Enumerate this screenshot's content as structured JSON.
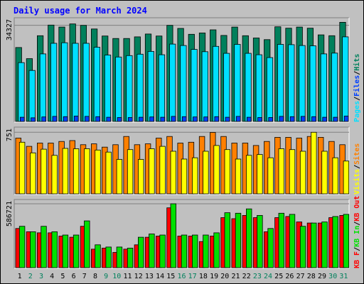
{
  "chart_data": {
    "type": "bar",
    "title": "Daily usage for March 2024",
    "categories": [
      "1",
      "2",
      "3",
      "4",
      "5",
      "6",
      "7",
      "8",
      "9",
      "10",
      "11",
      "12",
      "13",
      "14",
      "15",
      "16",
      "17",
      "18",
      "19",
      "20",
      "21",
      "22",
      "23",
      "24",
      "25",
      "26",
      "27",
      "28",
      "29",
      "30",
      "31"
    ],
    "weekend_days": [
      2,
      3,
      9,
      10,
      16,
      17,
      23,
      24,
      30,
      31
    ],
    "colors": {
      "title": "#0000ff",
      "hits": "#00805c",
      "files": "#00e0ff",
      "pages": "#0040ff",
      "visits": "#ffff00",
      "sites": "#ff8000",
      "kb_in": "#00e000",
      "kb_out": "#ff0000",
      "weekday_label": "#000000",
      "weekend_label": "#00805c",
      "background": "#c0c0c0"
    },
    "panels": [
      {
        "name": "requests",
        "axis_max_label": "34327",
        "ylim": [
          0,
          36000
        ],
        "legend": [
          {
            "text": "Pages",
            "color": "#00e0ff"
          },
          {
            "text": "/",
            "color": "#000000"
          },
          {
            "text": "Files",
            "color": "#0040ff"
          },
          {
            "text": "/",
            "color": "#000000"
          },
          {
            "text": "Hits",
            "color": "#00805c"
          }
        ],
        "series": [
          {
            "name": "Hits",
            "color": "#00805c",
            "values": [
              26400,
              22400,
              30600,
              34400,
              33700,
              34800,
              34300,
              33000,
              30500,
              29600,
              29600,
              30200,
              31200,
              30500,
              34300,
              33200,
              31100,
              31600,
              32700,
              30700,
              33700,
              30600,
              29800,
              29200,
              33800,
              33300,
              33700,
              33300,
              30900,
              30600,
              35400
            ]
          },
          {
            "name": "Files",
            "color": "#00e0ff",
            "values": [
              21000,
              18200,
              24100,
              27900,
              28100,
              27900,
              27900,
              26500,
              23700,
              23000,
              23500,
              24000,
              25000,
              23800,
              27600,
              27100,
              25700,
              24900,
              26800,
              24300,
              27500,
              24300,
              23800,
              22800,
              27500,
              27400,
              27100,
              27000,
              24100,
              24400,
              30200
            ]
          },
          {
            "name": "Pages",
            "color": "#0040ff",
            "values": [
              1500,
              1300,
              1600,
              1800,
              1700,
              1900,
              1800,
              1700,
              1500,
              1400,
              1400,
              1500,
              1600,
              1500,
              1800,
              1700,
              1600,
              1600,
              1700,
              1500,
              1800,
              1500,
              1400,
              1400,
              1800,
              1700,
              1800,
              1700,
              1500,
              1500,
              1900
            ]
          }
        ]
      },
      {
        "name": "visitors",
        "axis_max_label": "751",
        "ylim": [
          0,
          780
        ],
        "legend": [
          {
            "text": "Visits",
            "color": "#ffff00"
          },
          {
            "text": "/",
            "color": "#000000"
          },
          {
            "text": "Sites",
            "color": "#ff8000"
          }
        ],
        "series": [
          {
            "name": "Visits",
            "color": "#ffff00",
            "values": [
              630,
              500,
              545,
              470,
              555,
              550,
              550,
              535,
              510,
              420,
              540,
              420,
              550,
              580,
              520,
              425,
              440,
              520,
              590,
              540,
              425,
              470,
              480,
              440,
              550,
              540,
              520,
              751,
              520,
              440,
              400
            ]
          },
          {
            "name": "Sites",
            "color": "#ff8000",
            "values": [
              680,
              580,
              620,
              620,
              640,
              650,
              600,
              610,
              570,
              600,
              700,
              600,
              610,
              680,
              700,
              620,
              630,
              700,
              750,
              700,
              620,
              620,
              590,
              640,
              690,
              690,
              680,
              700,
              690,
              640,
              600
            ]
          }
        ]
      },
      {
        "name": "traffic",
        "axis_max_label": "586721",
        "ylim": [
          0,
          600000
        ],
        "legend": [
          {
            "text": "KB F",
            "color": "#ff0000"
          },
          {
            "text": "/",
            "color": "#000000"
          },
          {
            "text": "KB In",
            "color": "#00e000"
          },
          {
            "text": "/",
            "color": "#000000"
          },
          {
            "text": "KB Out",
            "color": "#ff0000"
          }
        ],
        "series": [
          {
            "name": "KB In",
            "color": "#00e000",
            "values": [
              380000,
              330000,
              380000,
              330000,
              300000,
              300000,
              430000,
              210000,
              190000,
              190000,
              180000,
              280000,
              310000,
              300000,
              586721,
              300000,
              300000,
              300000,
              320000,
              505000,
              500000,
              540000,
              480000,
              360000,
              500000,
              490000,
              380000,
              410000,
              420000,
              470000,
              490000
            ]
          },
          {
            "name": "KB Out",
            "color": "#ff0000",
            "values": [
              360000,
              330000,
              320000,
              320000,
              290000,
              280000,
              380000,
              170000,
              180000,
              140000,
              170000,
              210000,
              280000,
              290000,
              550000,
              290000,
              290000,
              240000,
              290000,
              460000,
              450000,
              480000,
              460000,
              330000,
              460000,
              470000,
              420000,
              410000,
              410000,
              460000,
              480000
            ]
          }
        ]
      }
    ]
  }
}
